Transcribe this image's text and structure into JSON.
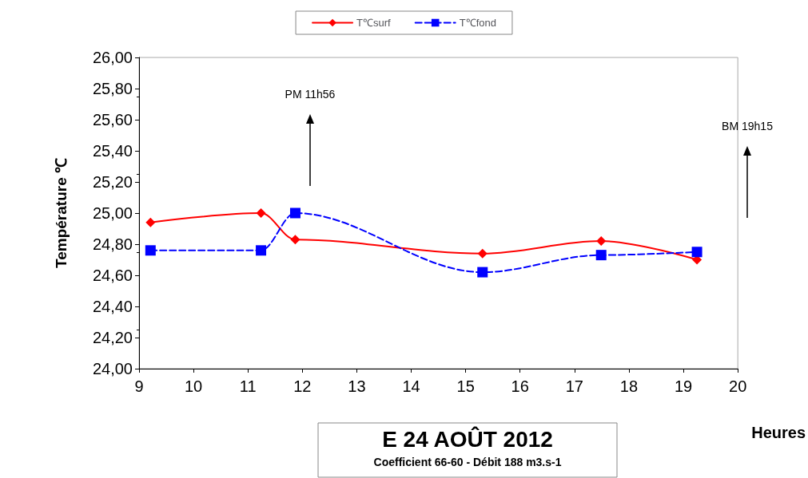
{
  "chart_data": {
    "type": "line",
    "title": "E 24 AOÛT 2012",
    "subtitle": "Coefficient 66-60 - Débit 188 m3.s-1",
    "xlabel": "Heures",
    "ylabel": "Température ℃",
    "xlim": [
      9,
      20
    ],
    "xticks": [
      9,
      10,
      11,
      12,
      13,
      14,
      15,
      16,
      17,
      18,
      19,
      20
    ],
    "ylim": [
      24,
      26
    ],
    "yticks": [
      {
        "value": 24,
        "label": "24,00"
      },
      {
        "value": 24.2,
        "label": "24,20"
      },
      {
        "value": 24.4,
        "label": "24,40"
      },
      {
        "value": 24.6,
        "label": "24,60"
      },
      {
        "value": 24.8,
        "label": "24,80"
      },
      {
        "value": 25,
        "label": "25,00"
      },
      {
        "value": 25.2,
        "label": "25,20"
      },
      {
        "value": 25.4,
        "label": "25,40"
      },
      {
        "value": 25.6,
        "label": "25,60"
      },
      {
        "value": 25.8,
        "label": "25,80"
      },
      {
        "value": 26,
        "label": "26,00"
      }
    ],
    "series": [
      {
        "name": "T℃surf",
        "color": "#ff0000",
        "marker": "diamond",
        "line_style": "solid",
        "x": [
          9.21,
          11.24,
          11.87,
          15.31,
          17.49,
          19.25
        ],
        "values": [
          24.94,
          25.0,
          24.83,
          24.74,
          24.82,
          24.7
        ]
      },
      {
        "name": "T℃fond",
        "color": "#0000ff",
        "marker": "square",
        "line_style": "dashed",
        "x": [
          9.21,
          11.24,
          11.87,
          15.31,
          17.49,
          19.25
        ],
        "values": [
          24.76,
          24.76,
          25.0,
          24.62,
          24.73,
          24.75
        ]
      }
    ],
    "annotations": [
      "PM 11h56",
      "BM 19h15"
    ],
    "legend": "top",
    "grid": false
  }
}
